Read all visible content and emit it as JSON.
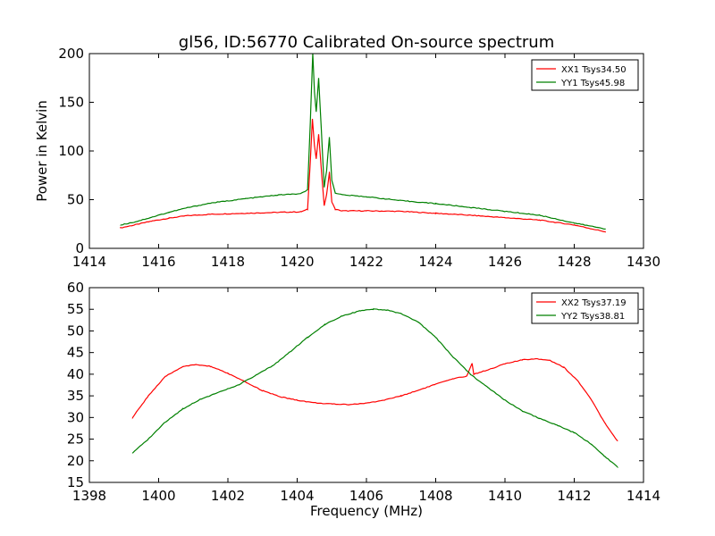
{
  "title": "gl56, ID:56770 Calibrated On-source spectrum",
  "chart_data": [
    {
      "type": "line",
      "ylabel": "Power in Kelvin",
      "xlabel": "",
      "xlim": [
        1414,
        1430
      ],
      "ylim": [
        0,
        200
      ],
      "xticks": [
        1414,
        1416,
        1418,
        1420,
        1422,
        1424,
        1426,
        1428,
        1430
      ],
      "yticks": [
        0,
        50,
        100,
        150,
        200
      ],
      "legend_position": "top-right",
      "grid": false,
      "series": [
        {
          "name": "XX1 Tsys34.50",
          "color": "#ff0000",
          "points": [
            [
              1414.9,
              21
            ],
            [
              1415.3,
              24
            ],
            [
              1415.8,
              28
            ],
            [
              1416.3,
              31
            ],
            [
              1416.8,
              33.5
            ],
            [
              1417.5,
              35
            ],
            [
              1418.5,
              36
            ],
            [
              1419.5,
              37
            ],
            [
              1420.1,
              37.5
            ],
            [
              1420.3,
              40
            ],
            [
              1420.38,
              90
            ],
            [
              1420.44,
              133
            ],
            [
              1420.5,
              105
            ],
            [
              1420.55,
              92
            ],
            [
              1420.62,
              117
            ],
            [
              1420.7,
              80
            ],
            [
              1420.78,
              44
            ],
            [
              1420.85,
              55
            ],
            [
              1420.93,
              78
            ],
            [
              1421.0,
              48
            ],
            [
              1421.1,
              40
            ],
            [
              1421.3,
              38.5
            ],
            [
              1422,
              38.5
            ],
            [
              1423,
              38
            ],
            [
              1424,
              36
            ],
            [
              1425,
              34
            ],
            [
              1426,
              31.5
            ],
            [
              1427,
              29
            ],
            [
              1428,
              24
            ],
            [
              1428.9,
              17
            ]
          ]
        },
        {
          "name": "YY1 Tsys45.98",
          "color": "#008000",
          "points": [
            [
              1414.9,
              24
            ],
            [
              1415.3,
              27
            ],
            [
              1415.8,
              32
            ],
            [
              1416.3,
              37
            ],
            [
              1416.8,
              41.5
            ],
            [
              1417.5,
              46.5
            ],
            [
              1418.5,
              51
            ],
            [
              1419.5,
              55
            ],
            [
              1420.1,
              56
            ],
            [
              1420.3,
              60
            ],
            [
              1420.38,
              130
            ],
            [
              1420.45,
              200
            ],
            [
              1420.5,
              160
            ],
            [
              1420.55,
              140
            ],
            [
              1420.62,
              175
            ],
            [
              1420.7,
              120
            ],
            [
              1420.78,
              63
            ],
            [
              1420.85,
              80
            ],
            [
              1420.93,
              114
            ],
            [
              1421.0,
              70
            ],
            [
              1421.1,
              57
            ],
            [
              1421.3,
              55
            ],
            [
              1422,
              53
            ],
            [
              1423,
              49
            ],
            [
              1424,
              46
            ],
            [
              1425,
              42
            ],
            [
              1426,
              38
            ],
            [
              1427,
              34
            ],
            [
              1428,
              26
            ],
            [
              1428.9,
              20
            ]
          ]
        }
      ]
    },
    {
      "type": "line",
      "ylabel": "",
      "xlabel": "Frequency (MHz)",
      "xlim": [
        1398,
        1414
      ],
      "ylim": [
        15,
        60
      ],
      "xticks": [
        1398,
        1400,
        1402,
        1404,
        1406,
        1408,
        1410,
        1412,
        1414
      ],
      "yticks": [
        15,
        20,
        25,
        30,
        35,
        40,
        45,
        50,
        55,
        60
      ],
      "legend_position": "top-right",
      "grid": false,
      "series": [
        {
          "name": "XX2 Tsys37.19",
          "color": "#ff0000",
          "points": [
            [
              1399.25,
              30
            ],
            [
              1399.7,
              35
            ],
            [
              1400.2,
              39.5
            ],
            [
              1400.7,
              41.8
            ],
            [
              1401.1,
              42.2
            ],
            [
              1401.5,
              41.8
            ],
            [
              1402.0,
              40.2
            ],
            [
              1402.5,
              38.2
            ],
            [
              1403.0,
              36.2
            ],
            [
              1403.5,
              34.8
            ],
            [
              1404.0,
              34
            ],
            [
              1404.5,
              33.4
            ],
            [
              1405.0,
              33.1
            ],
            [
              1405.5,
              33
            ],
            [
              1406.0,
              33.3
            ],
            [
              1406.5,
              34
            ],
            [
              1407.0,
              35
            ],
            [
              1407.5,
              36.3
            ],
            [
              1408.0,
              37.7
            ],
            [
              1408.5,
              38.9
            ],
            [
              1408.9,
              39.6
            ],
            [
              1409.05,
              42.5
            ],
            [
              1409.1,
              40
            ],
            [
              1409.5,
              41
            ],
            [
              1410.0,
              42.4
            ],
            [
              1410.5,
              43.3
            ],
            [
              1410.9,
              43.6
            ],
            [
              1411.3,
              43.2
            ],
            [
              1411.7,
              41.6
            ],
            [
              1412.1,
              38.5
            ],
            [
              1412.5,
              34
            ],
            [
              1412.9,
              28.5
            ],
            [
              1413.25,
              24.5
            ]
          ]
        },
        {
          "name": "YY2 Tsys38.81",
          "color": "#008000",
          "points": [
            [
              1399.25,
              21.8
            ],
            [
              1399.7,
              25
            ],
            [
              1400.2,
              29
            ],
            [
              1400.7,
              32
            ],
            [
              1401.2,
              34.2
            ],
            [
              1401.8,
              36
            ],
            [
              1402.3,
              37.5
            ],
            [
              1402.8,
              39.7
            ],
            [
              1403.3,
              42
            ],
            [
              1403.8,
              45.2
            ],
            [
              1404.3,
              48.5
            ],
            [
              1404.8,
              51.5
            ],
            [
              1405.3,
              53.5
            ],
            [
              1405.8,
              54.6
            ],
            [
              1406.2,
              55
            ],
            [
              1406.6,
              54.8
            ],
            [
              1407.0,
              54
            ],
            [
              1407.5,
              52
            ],
            [
              1408.0,
              48.5
            ],
            [
              1408.5,
              44
            ],
            [
              1409.0,
              40
            ],
            [
              1409.5,
              37
            ],
            [
              1410.0,
              34
            ],
            [
              1410.5,
              31.5
            ],
            [
              1411.0,
              29.8
            ],
            [
              1411.5,
              28.2
            ],
            [
              1412.0,
              26.5
            ],
            [
              1412.5,
              23.8
            ],
            [
              1412.9,
              20.9
            ],
            [
              1413.25,
              18.6
            ]
          ]
        }
      ]
    }
  ]
}
